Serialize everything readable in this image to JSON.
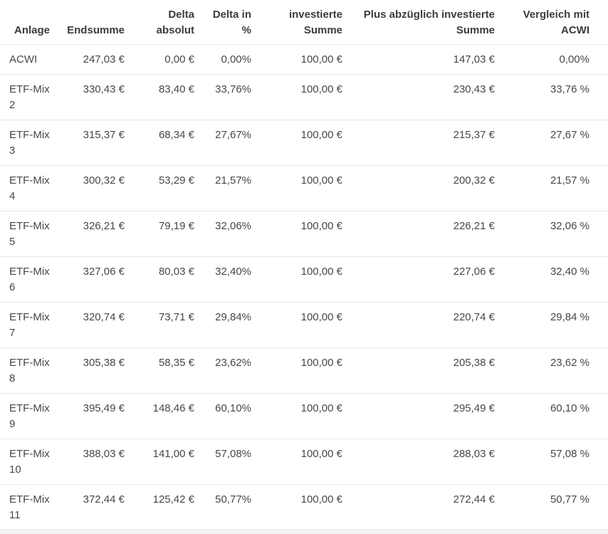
{
  "table": {
    "columns": [
      {
        "id": "anlage",
        "label": "Anlage",
        "label_lines": [
          "Anlage"
        ],
        "align": "left"
      },
      {
        "id": "endsumme",
        "label": "Endsumme",
        "label_lines": [
          "Endsumme"
        ],
        "align": "right"
      },
      {
        "id": "delta_absolut",
        "label": "Delta absolut",
        "label_lines": [
          "Delta",
          "absolut"
        ],
        "align": "right"
      },
      {
        "id": "delta_in_prozent",
        "label": "Delta in %",
        "label_lines": [
          "Delta in",
          "%"
        ],
        "align": "right"
      },
      {
        "id": "investierte_summe",
        "label": "investierte Summe",
        "label_lines": [
          "investierte",
          "Summe"
        ],
        "align": "right"
      },
      {
        "id": "plus_abzueglich_investierte_summe",
        "label": "Plus abzüglich investierte Summe",
        "label_lines": [
          "Plus abzüglich investierte",
          "Summe"
        ],
        "align": "right"
      },
      {
        "id": "vergleich_mit_acwi",
        "label": "Vergleich mit ACWI",
        "label_lines": [
          "Vergleich mit",
          "ACWI"
        ],
        "align": "right"
      }
    ],
    "rows": [
      {
        "anlage_lines": [
          "ACWI"
        ],
        "cells": [
          "247,03 €",
          "0,00 €",
          "0,00%",
          "100,00 €",
          "147,03 €",
          "0,00%"
        ]
      },
      {
        "anlage_lines": [
          "ETF-Mix",
          "2"
        ],
        "cells": [
          "330,43 €",
          "83,40 €",
          "33,76%",
          "100,00 €",
          "230,43 €",
          "33,76 %"
        ]
      },
      {
        "anlage_lines": [
          "ETF-Mix",
          "3"
        ],
        "cells": [
          "315,37 €",
          "68,34 €",
          "27,67%",
          "100,00 €",
          "215,37 €",
          "27,67 %"
        ]
      },
      {
        "anlage_lines": [
          "ETF-Mix",
          "4"
        ],
        "cells": [
          "300,32 €",
          "53,29 €",
          "21,57%",
          "100,00 €",
          "200,32 €",
          "21,57 %"
        ]
      },
      {
        "anlage_lines": [
          "ETF-Mix",
          "5"
        ],
        "cells": [
          "326,21 €",
          "79,19 €",
          "32,06%",
          "100,00 €",
          "226,21 €",
          "32,06 %"
        ]
      },
      {
        "anlage_lines": [
          "ETF-Mix",
          "6"
        ],
        "cells": [
          "327,06 €",
          "80,03 €",
          "32,40%",
          "100,00 €",
          "227,06 €",
          "32,40 %"
        ]
      },
      {
        "anlage_lines": [
          "ETF-Mix",
          "7"
        ],
        "cells": [
          "320,74 €",
          "73,71 €",
          "29,84%",
          "100,00 €",
          "220,74 €",
          "29,84 %"
        ]
      },
      {
        "anlage_lines": [
          "ETF-Mix",
          "8"
        ],
        "cells": [
          "305,38 €",
          "58,35 €",
          "23,62%",
          "100,00 €",
          "205,38 €",
          "23,62 %"
        ]
      },
      {
        "anlage_lines": [
          "ETF-Mix",
          "9"
        ],
        "cells": [
          "395,49 €",
          "148,46 €",
          "60,10%",
          "100,00 €",
          "295,49 €",
          "60,10 %"
        ]
      },
      {
        "anlage_lines": [
          "ETF-Mix",
          "10"
        ],
        "cells": [
          "388,03 €",
          "141,00 €",
          "57,08%",
          "100,00 €",
          "288,03 €",
          "57,08 %"
        ]
      },
      {
        "anlage_lines": [
          "ETF-Mix",
          "11"
        ],
        "cells": [
          "372,44 €",
          "125,42 €",
          "50,77%",
          "100,00 €",
          "272,44 €",
          "50,77 %"
        ]
      }
    ]
  },
  "colors": {
    "header_text": "#3c3c3c",
    "body_text": "#474747",
    "border": "#e7e7e7",
    "row_background": "#ffffff",
    "bottom_strip": "#f4f4f4"
  }
}
